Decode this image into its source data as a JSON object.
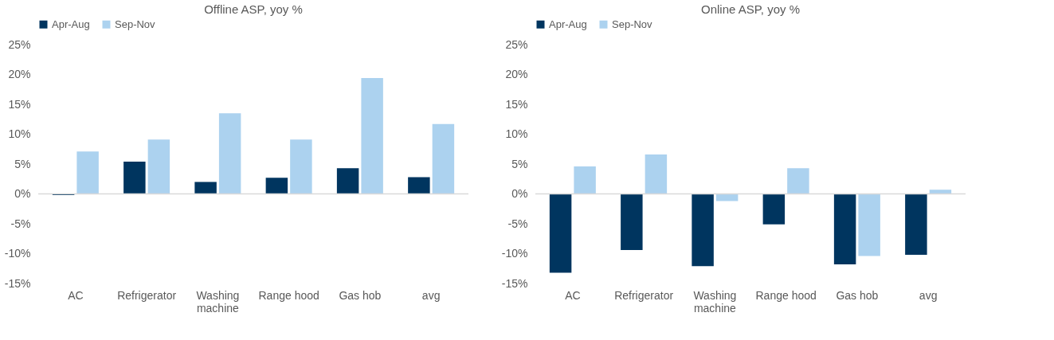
{
  "chart_data": [
    {
      "type": "bar",
      "title": "Offline ASP, yoy %",
      "categories": [
        "AC",
        "Refrigerator",
        "Washing machine",
        "Range hood",
        "Gas hob",
        "avg"
      ],
      "series": [
        {
          "name": "Apr-Aug",
          "color": "#00355f",
          "values": [
            -0.2,
            5.4,
            2.0,
            2.7,
            4.3,
            2.8
          ]
        },
        {
          "name": "Sep-Nov",
          "color": "#acd2ef",
          "values": [
            7.1,
            9.1,
            13.5,
            9.1,
            19.4,
            11.7
          ]
        }
      ],
      "ylim": [
        -15,
        25
      ],
      "yticks": [
        {
          "value": -15,
          "label": "-15%"
        },
        {
          "value": -10,
          "label": "-10%"
        },
        {
          "value": -5,
          "label": "-5%"
        },
        {
          "value": 0,
          "label": "0%"
        },
        {
          "value": 5,
          "label": "5%"
        },
        {
          "value": 10,
          "label": "10%"
        },
        {
          "value": 15,
          "label": "15%"
        },
        {
          "value": 20,
          "label": "20%"
        },
        {
          "value": 25,
          "label": "25%"
        }
      ],
      "ref_lines": [
        {
          "axis": "y",
          "value": 0,
          "color": "#d9d9d9"
        }
      ],
      "grid": false,
      "legend": "top"
    },
    {
      "type": "bar",
      "title": "Online ASP, yoy %",
      "categories": [
        "AC",
        "Refrigerator",
        "Washing machine",
        "Range hood",
        "Gas hob",
        "avg"
      ],
      "series": [
        {
          "name": "Apr-Aug",
          "color": "#00355f",
          "values": [
            -13.2,
            -9.4,
            -12.1,
            -5.1,
            -11.8,
            -10.2
          ]
        },
        {
          "name": "Sep-Nov",
          "color": "#acd2ef",
          "values": [
            4.6,
            6.6,
            -1.2,
            4.3,
            -10.4,
            0.7
          ]
        }
      ],
      "ylim": [
        -15,
        25
      ],
      "yticks": [
        {
          "value": -15,
          "label": "-15%"
        },
        {
          "value": -10,
          "label": "-10%"
        },
        {
          "value": -5,
          "label": "-5%"
        },
        {
          "value": 0,
          "label": "0%"
        },
        {
          "value": 5,
          "label": "5%"
        },
        {
          "value": 10,
          "label": "10%"
        },
        {
          "value": 15,
          "label": "15%"
        },
        {
          "value": 20,
          "label": "20%"
        },
        {
          "value": 25,
          "label": "25%"
        }
      ],
      "ref_lines": [
        {
          "axis": "y",
          "value": 0,
          "color": "#d9d9d9"
        }
      ],
      "grid": false,
      "legend": "top"
    }
  ]
}
